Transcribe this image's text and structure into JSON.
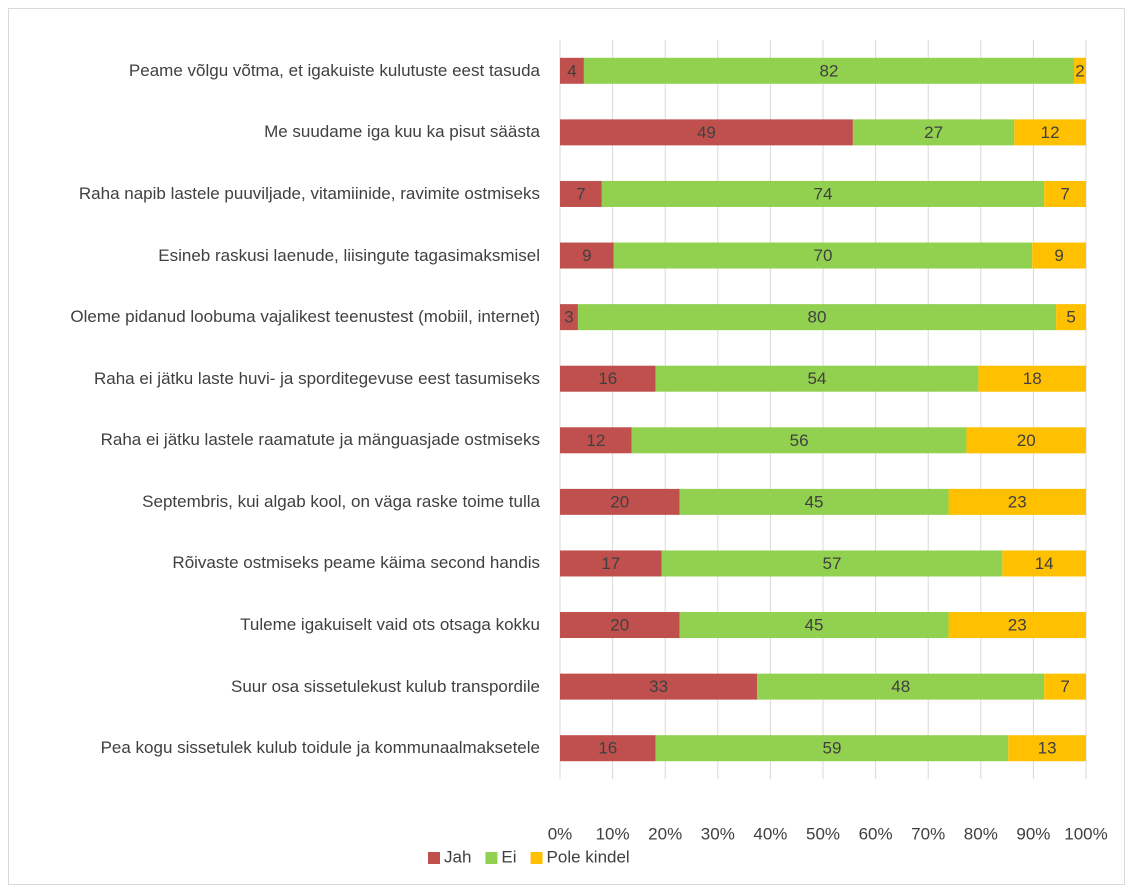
{
  "chart_data": {
    "type": "bar100",
    "orientation": "horizontal",
    "categories": [
      "Peame võlgu võtma, et igakuiste kulutuste eest tasuda",
      "Me suudame iga kuu ka pisut säästa",
      "Raha napib lastele puuviljade, vitamiinide, ravimite ostmiseks",
      "Esineb raskusi laenude, liisingute tagasimaksmisel",
      "Oleme pidanud loobuma vajalikest teenustest (mobiil, internet)",
      "Raha ei jätku laste huvi- ja sporditegevuse eest tasumiseks",
      "Raha ei jätku lastele raamatute ja mänguasjade ostmiseks",
      "Septembris, kui algab kool, on väga raske toime tulla",
      "Rõivaste ostmiseks peame käima second handis",
      "Tuleme igakuiselt vaid ots otsaga kokku",
      "Suur osa sissetulekust kulub transpordile",
      "Pea kogu sissetulek kulub toidule ja kommunaalmaksetele"
    ],
    "series": [
      {
        "name": "Jah",
        "color": "#c0504d",
        "values": [
          4,
          49,
          7,
          9,
          3,
          16,
          12,
          20,
          17,
          20,
          33,
          16
        ]
      },
      {
        "name": "Ei",
        "color": "#92d050",
        "values": [
          82,
          27,
          74,
          70,
          80,
          54,
          56,
          45,
          57,
          45,
          48,
          59
        ]
      },
      {
        "name": "Pole kindel",
        "color": "#ffc000",
        "values": [
          2,
          12,
          7,
          9,
          5,
          18,
          20,
          23,
          14,
          23,
          7,
          13
        ]
      }
    ],
    "xlim": [
      0,
      100
    ],
    "xticks": [
      {
        "value": 0,
        "label": "0%"
      },
      {
        "value": 10,
        "label": "10%"
      },
      {
        "value": 20,
        "label": "20%"
      },
      {
        "value": 30,
        "label": "30%"
      },
      {
        "value": 40,
        "label": "40%"
      },
      {
        "value": 50,
        "label": "50%"
      },
      {
        "value": 60,
        "label": "60%"
      },
      {
        "value": 70,
        "label": "70%"
      },
      {
        "value": 80,
        "label": "80%"
      },
      {
        "value": 90,
        "label": "90%"
      },
      {
        "value": 100,
        "label": "100%"
      }
    ],
    "grid": true,
    "legend": "bottom"
  }
}
